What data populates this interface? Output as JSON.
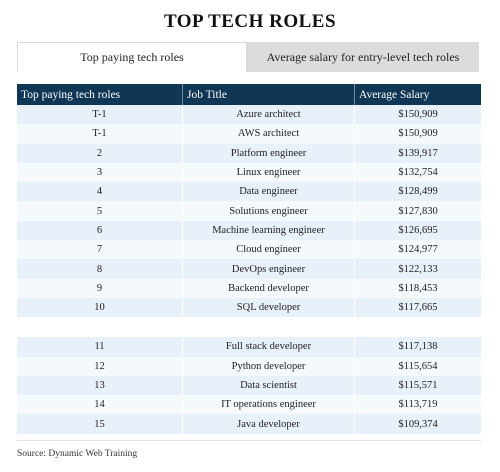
{
  "title": "TOP TECH ROLES",
  "tabs": [
    {
      "label": "Top paying tech roles",
      "active": true
    },
    {
      "label": "Average salary for entry-level tech roles",
      "active": false
    }
  ],
  "table": {
    "headers": [
      "Top paying tech roles",
      "Job Title",
      "Average Salary"
    ],
    "group1": [
      {
        "rank": "T-1",
        "title": "Azure architect",
        "salary": "$150,909"
      },
      {
        "rank": "T-1",
        "title": "AWS architect",
        "salary": "$150,909"
      },
      {
        "rank": "2",
        "title": "Platform engineer",
        "salary": "$139,917"
      },
      {
        "rank": "3",
        "title": "Linux engineer",
        "salary": "$132,754"
      },
      {
        "rank": "4",
        "title": "Data engineer",
        "salary": "$128,499"
      },
      {
        "rank": "5",
        "title": "Solutions engineer",
        "salary": "$127,830"
      },
      {
        "rank": "6",
        "title": "Machine learning engineer",
        "salary": "$126,695"
      },
      {
        "rank": "7",
        "title": "Cloud engineer",
        "salary": "$124,977"
      },
      {
        "rank": "8",
        "title": "DevOps engineer",
        "salary": "$122,133"
      },
      {
        "rank": "9",
        "title": "Backend developer",
        "salary": "$118,453"
      },
      {
        "rank": "10",
        "title": "SQL developer",
        "salary": "$117,665"
      }
    ],
    "group2": [
      {
        "rank": "11",
        "title": "Full stack developer",
        "salary": "$117,138"
      },
      {
        "rank": "12",
        "title": "Python developer",
        "salary": "$115,654"
      },
      {
        "rank": "13",
        "title": "Data scientist",
        "salary": "$115,571"
      },
      {
        "rank": "14",
        "title": "IT operations engineer",
        "salary": "$113,719"
      },
      {
        "rank": "15",
        "title": "Java developer",
        "salary": "$109,374"
      }
    ]
  },
  "source": "Source: Dynamic Web Training"
}
